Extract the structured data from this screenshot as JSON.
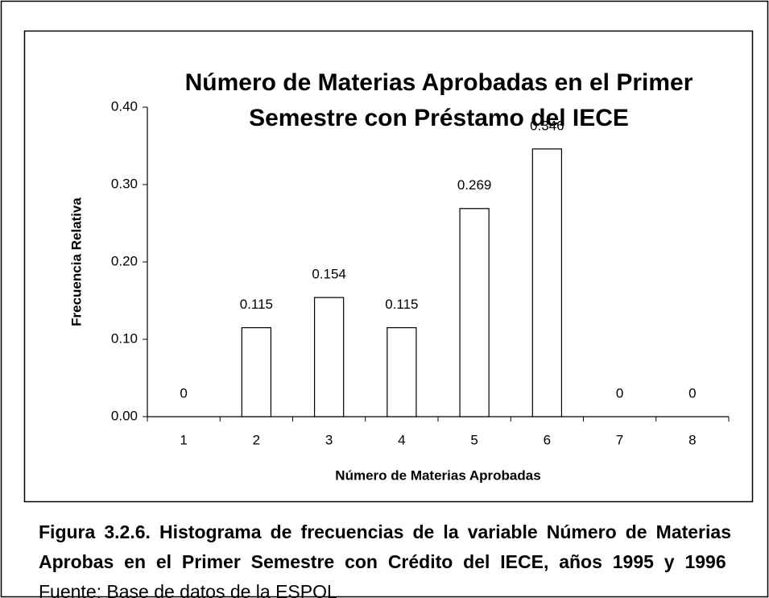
{
  "chart_data": {
    "type": "bar",
    "title": [
      "Número de Materias Aprobadas en el Primer",
      "Semestre con Préstamo del IECE"
    ],
    "x_label": "Número de Materias Aprobadas",
    "y_label": "Frecuencia Relativa",
    "categories": [
      "1",
      "2",
      "3",
      "4",
      "5",
      "6",
      "7",
      "8"
    ],
    "values": [
      0,
      0.115,
      0.154,
      0.115,
      0.269,
      0.346,
      0,
      0
    ],
    "color": "#ffffff",
    "ylim": [
      0,
      0.4
    ],
    "yticks": [
      {
        "value": 0,
        "label": "0.00"
      },
      {
        "value": 0.1,
        "label": "0.10"
      },
      {
        "value": 0.2,
        "label": "0.20"
      },
      {
        "value": 0.3,
        "label": "0.30"
      },
      {
        "value": 0.4,
        "label": "0.40"
      }
    ],
    "grid": false
  },
  "caption": {
    "text": "Figura 3.2.6. Histograma de frecuencias de la variable Número de Materias Aprobas en el Primer Semestre con Crédito del IECE, años 1995 y 1996",
    "source": "Fuente: Base de datos de la ESPOL"
  }
}
